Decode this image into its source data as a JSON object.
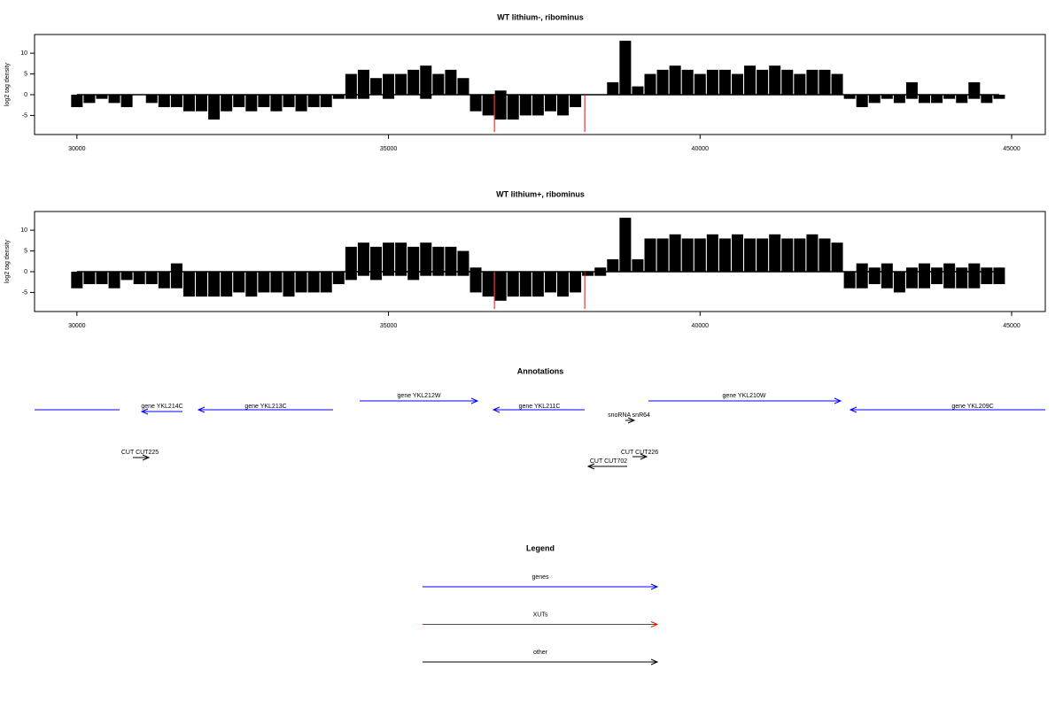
{
  "chart_data": [
    {
      "type": "bar",
      "title": "WT lithium-, ribominus",
      "y_label": "log2 tag density",
      "x": [
        30000,
        30200,
        30400,
        30600,
        30800,
        31000,
        31200,
        31400,
        31600,
        31800,
        32000,
        32200,
        32400,
        32600,
        32800,
        33000,
        33200,
        33400,
        33600,
        33800,
        34000,
        34200,
        34400,
        34600,
        34800,
        35000,
        35200,
        35400,
        35600,
        35800,
        36000,
        36200,
        36400,
        36600,
        36800,
        37000,
        37200,
        37400,
        37600,
        37800,
        38000,
        38200,
        38400,
        38600,
        38800,
        39000,
        39200,
        39400,
        39600,
        39800,
        40000,
        40200,
        40400,
        40600,
        40800,
        41000,
        41200,
        41400,
        41600,
        41800,
        42000,
        42200,
        42400,
        42600,
        42800,
        43000,
        43200,
        43400,
        43600,
        43800,
        44000,
        44200,
        44400,
        44600,
        44800
      ],
      "xlim": [
        29320,
        45540
      ],
      "ylim": [
        -9.6,
        14.5
      ],
      "xticks": [
        30000,
        35000,
        40000,
        45000
      ],
      "yticks": [
        -5,
        0,
        5,
        10
      ],
      "series": [
        {
          "color": "#000000",
          "values": [
            0,
            0,
            0,
            0,
            0,
            0,
            0,
            0,
            0,
            0,
            0,
            0,
            0,
            0,
            0,
            0,
            0,
            0,
            0,
            0,
            0,
            0,
            5,
            6,
            4,
            5,
            5,
            6,
            7,
            5,
            6,
            4,
            0,
            0,
            1,
            0,
            0,
            0,
            0,
            0,
            0,
            0,
            0,
            3,
            13,
            2,
            5,
            6,
            7,
            6,
            5,
            6,
            6,
            5,
            7,
            6,
            7,
            6,
            5,
            6,
            6,
            5,
            0,
            0,
            0,
            0,
            0,
            3,
            0,
            0,
            0,
            0,
            3,
            0,
            0
          ]
        },
        {
          "color": "#000000",
          "values": [
            -3,
            -2,
            -1,
            -2,
            -3,
            0,
            -2,
            -3,
            -3,
            -4,
            -4,
            -6,
            -4,
            -3,
            -4,
            -3,
            -4,
            -3,
            -4,
            -3,
            -3,
            -1,
            -1,
            -1,
            0,
            -1,
            0,
            0,
            -1,
            0,
            0,
            0,
            -4,
            -5,
            -6,
            -6,
            -5,
            -5,
            -4,
            -5,
            -3,
            0,
            0,
            0,
            0,
            0,
            0,
            0,
            0,
            0,
            0,
            0,
            0,
            0,
            0,
            0,
            0,
            0,
            0,
            0,
            0,
            0,
            -1,
            -3,
            -2,
            -1,
            -2,
            -1,
            -2,
            -2,
            -1,
            -2,
            -1,
            -2,
            -1
          ]
        }
      ],
      "highlights": {
        "color": "#ff0000",
        "x": [
          36700,
          38150
        ],
        "values": [
          -9,
          -9
        ]
      }
    },
    {
      "type": "bar",
      "title": "WT lithium+, ribominus",
      "y_label": "log2 tag density",
      "x": [
        30000,
        30200,
        30400,
        30600,
        30800,
        31000,
        31200,
        31400,
        31600,
        31800,
        32000,
        32200,
        32400,
        32600,
        32800,
        33000,
        33200,
        33400,
        33600,
        33800,
        34000,
        34200,
        34400,
        34600,
        34800,
        35000,
        35200,
        35400,
        35600,
        35800,
        36000,
        36200,
        36400,
        36600,
        36800,
        37000,
        37200,
        37400,
        37600,
        37800,
        38000,
        38200,
        38400,
        38600,
        38800,
        39000,
        39200,
        39400,
        39600,
        39800,
        40000,
        40200,
        40400,
        40600,
        40800,
        41000,
        41200,
        41400,
        41600,
        41800,
        42000,
        42200,
        42400,
        42600,
        42800,
        43000,
        43200,
        43400,
        43600,
        43800,
        44000,
        44200,
        44400,
        44600,
        44800
      ],
      "xlim": [
        29320,
        45540
      ],
      "ylim": [
        -9.6,
        14.5
      ],
      "xticks": [
        30000,
        35000,
        40000,
        45000
      ],
      "yticks": [
        -5,
        0,
        5,
        10
      ],
      "series": [
        {
          "color": "#000000",
          "values": [
            0,
            0,
            0,
            0,
            0,
            0,
            0,
            0,
            2,
            0,
            0,
            0,
            0,
            0,
            0,
            0,
            0,
            0,
            0,
            0,
            0,
            0,
            6,
            7,
            6,
            7,
            7,
            6,
            7,
            6,
            6,
            5,
            1,
            0,
            0,
            0,
            0,
            0,
            0,
            0,
            0,
            0,
            1,
            3,
            13,
            3,
            8,
            8,
            9,
            8,
            8,
            9,
            8,
            9,
            8,
            8,
            9,
            8,
            8,
            9,
            8,
            7,
            0,
            2,
            1,
            2,
            0,
            1,
            2,
            1,
            2,
            1,
            2,
            1,
            1
          ]
        },
        {
          "color": "#000000",
          "values": [
            -4,
            -3,
            -3,
            -4,
            -2,
            -3,
            -3,
            -4,
            -4,
            -6,
            -6,
            -6,
            -6,
            -5,
            -6,
            -5,
            -5,
            -6,
            -5,
            -5,
            -5,
            -3,
            -2,
            -1,
            -2,
            -1,
            -1,
            -2,
            -1,
            -1,
            -1,
            -1,
            -5,
            -6,
            -7,
            -6,
            -6,
            -6,
            -5,
            -6,
            -5,
            -1,
            -1,
            0,
            0,
            0,
            0,
            0,
            0,
            0,
            0,
            0,
            0,
            0,
            0,
            0,
            0,
            0,
            0,
            0,
            0,
            0,
            -4,
            -4,
            -3,
            -4,
            -5,
            -4,
            -4,
            -3,
            -4,
            -4,
            -4,
            -3,
            -3
          ]
        }
      ],
      "highlights": {
        "color": "#ff0000",
        "x": [
          36700,
          38150
        ],
        "values": [
          -9,
          -9
        ]
      }
    }
  ],
  "annotations": {
    "title": "Annotations",
    "features": [
      {
        "label": "gene YKL214C",
        "color": "#0000ff"
      },
      {
        "label": "gene YKL213C",
        "color": "#0000ff"
      },
      {
        "label": "gene YKL212W",
        "color": "#0000ff"
      },
      {
        "label": "gene YKL211C",
        "color": "#0000ff"
      },
      {
        "label": "snoRNA snR64",
        "color": "#000000"
      },
      {
        "label": "gene YKL210W",
        "color": "#0000ff"
      },
      {
        "label": "gene YKL209C",
        "color": "#0000ff"
      },
      {
        "label": "CUT CUT225",
        "color": "#000000"
      },
      {
        "label": "CUT CUT226",
        "color": "#000000"
      },
      {
        "label": "CUT CUT702",
        "color": "#000000"
      }
    ]
  },
  "legend": {
    "title": "Legend",
    "items": [
      {
        "label": "genes",
        "color": "#0000ff"
      },
      {
        "label": "XUTs",
        "color": "#ff0000"
      },
      {
        "label": "other",
        "color": "#000000"
      }
    ]
  }
}
